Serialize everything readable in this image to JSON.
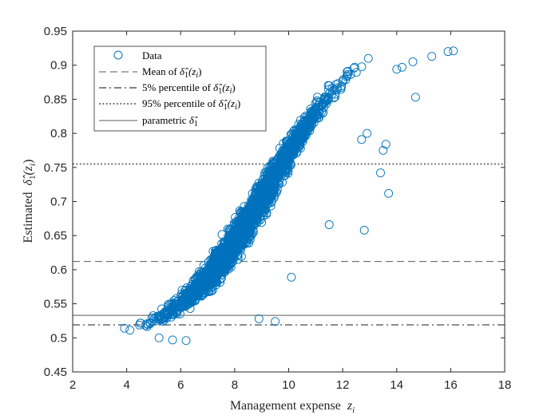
{
  "chart_data": {
    "type": "scatter",
    "xlabel_text": "Management expense",
    "xlabel_var": "z",
    "xlabel_sub": "i",
    "ylabel_text": "Estimated",
    "ylabel_sym": "δ̂",
    "ylabel_sub": "1",
    "ylabel_arg": "(z",
    "ylabel_arg_sub": "i",
    "ylabel_close": ")",
    "xlim": [
      2,
      18
    ],
    "ylim": [
      0.45,
      0.95
    ],
    "xticks": [
      2,
      4,
      6,
      8,
      10,
      12,
      14,
      16,
      18
    ],
    "yticks": [
      0.45,
      0.5,
      0.55,
      0.6,
      0.65,
      0.7,
      0.75,
      0.8,
      0.85,
      0.9,
      0.95
    ],
    "xtick_labels": [
      "2",
      "4",
      "6",
      "8",
      "10",
      "12",
      "14",
      "16",
      "18"
    ],
    "ytick_labels": [
      "0.45",
      "0.5",
      "0.55",
      "0.6",
      "0.65",
      "0.7",
      "0.75",
      "0.8",
      "0.85",
      "0.9",
      "0.95"
    ],
    "grid": false,
    "legend_position": "top-left",
    "marker_color": "#0072BD",
    "series": [
      {
        "name": "Data",
        "style": "circle-marker",
        "n_points": 2500,
        "trend": "logistic",
        "trend_params": {
          "lower": 0.49,
          "upper": 0.96,
          "midpoint": 9.3,
          "scale": 1.75
        }
      },
      {
        "name": "Mean of",
        "style": "dashed",
        "y": 0.612
      },
      {
        "name": "5% percentile of",
        "style": "dashdot",
        "y": 0.519
      },
      {
        "name": "95% percentile of",
        "style": "dotted",
        "y": 0.755
      },
      {
        "name": "parametric",
        "style": "solid",
        "y": 0.533
      }
    ],
    "outliers": [
      {
        "x": 13.4,
        "y": 0.742
      },
      {
        "x": 13.5,
        "y": 0.775
      },
      {
        "x": 13.7,
        "y": 0.712
      },
      {
        "x": 12.8,
        "y": 0.658
      },
      {
        "x": 14.7,
        "y": 0.853
      },
      {
        "x": 11.5,
        "y": 0.666
      },
      {
        "x": 9.5,
        "y": 0.524
      },
      {
        "x": 8.9,
        "y": 0.528
      },
      {
        "x": 10.1,
        "y": 0.589
      },
      {
        "x": 6.2,
        "y": 0.496
      },
      {
        "x": 5.2,
        "y": 0.5
      },
      {
        "x": 5.7,
        "y": 0.497
      },
      {
        "x": 13.6,
        "y": 0.784
      },
      {
        "x": 12.9,
        "y": 0.8
      },
      {
        "x": 12.7,
        "y": 0.791
      }
    ],
    "tail_points": [
      {
        "x": 14.2,
        "y": 0.897
      },
      {
        "x": 14.6,
        "y": 0.905
      },
      {
        "x": 15.3,
        "y": 0.913
      },
      {
        "x": 15.9,
        "y": 0.92
      },
      {
        "x": 16.1,
        "y": 0.921
      },
      {
        "x": 14.0,
        "y": 0.894
      }
    ]
  },
  "legend": {
    "data_label": "Data",
    "mean_label": "Mean of",
    "p5_label": "5% percentile of",
    "p95_label": "95% percentile of",
    "param_label": "parametric",
    "delta_sym": "δ̂",
    "delta_sub": "1",
    "arg_open": "(z",
    "arg_sub": "i",
    "arg_close": ")"
  }
}
